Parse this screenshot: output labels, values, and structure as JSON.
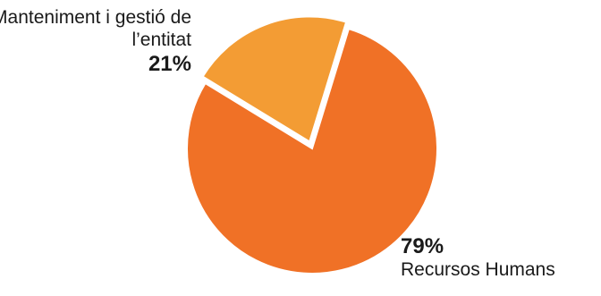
{
  "chart_data": {
    "type": "pie",
    "title": "",
    "slices": [
      {
        "name": "Manteniment i gestió de l’entitat",
        "value": 21,
        "label": "21%",
        "color": "#f39c34",
        "exploded": true
      },
      {
        "name": "Recursos Humans",
        "value": 79,
        "label": "79%",
        "color": "#f07126",
        "exploded": false
      }
    ],
    "legend": "none"
  }
}
